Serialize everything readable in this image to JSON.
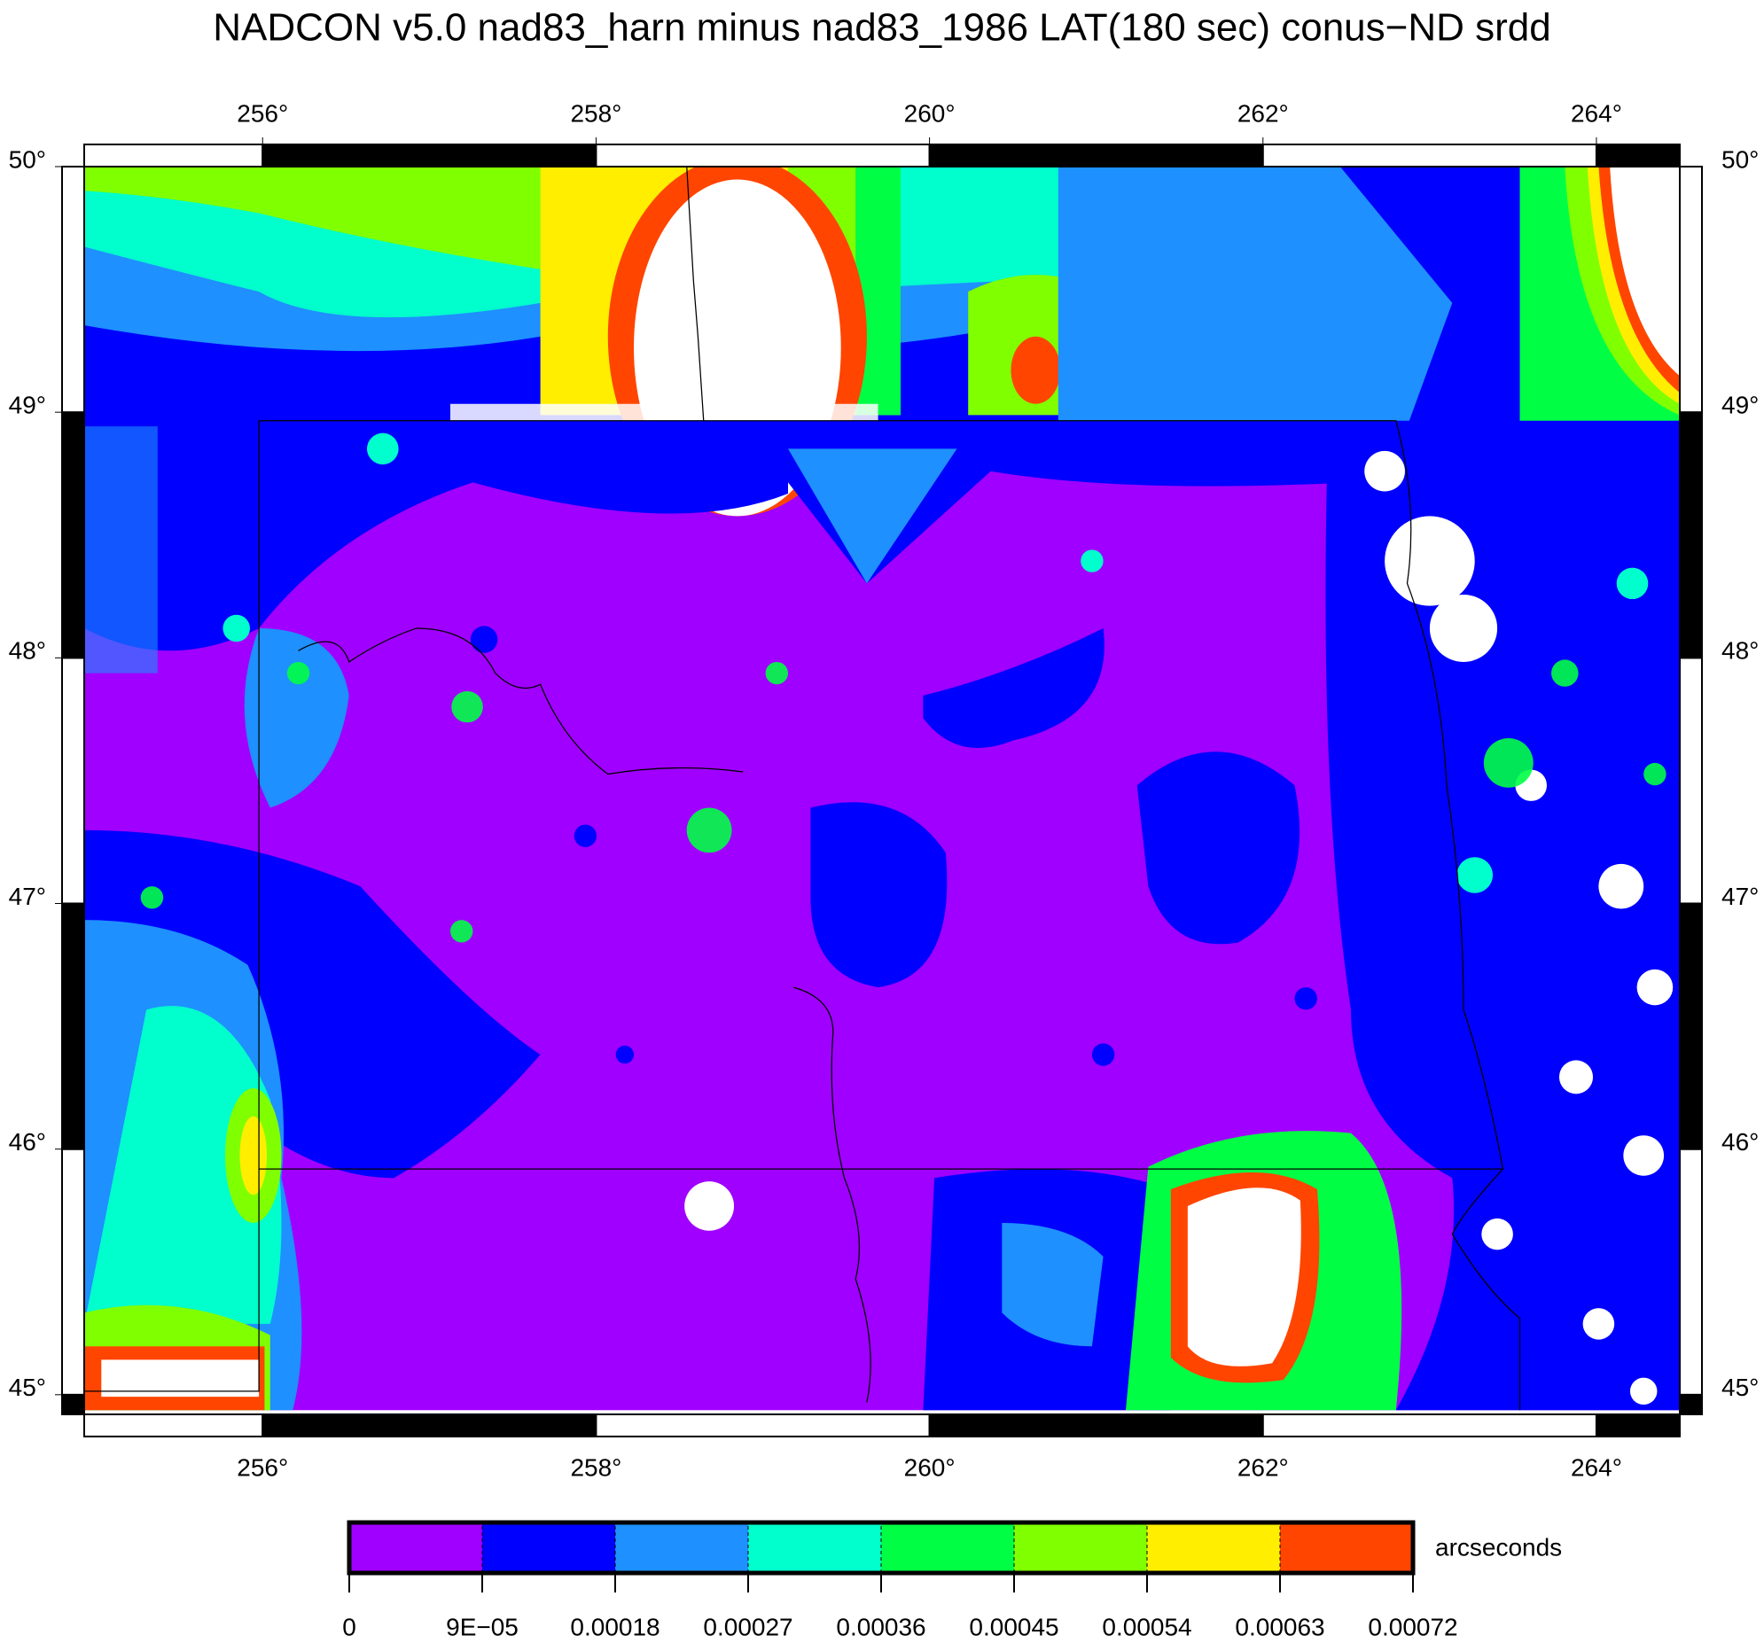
{
  "title": "NADCON v5.0 nad83_harn minus nad83_1986 LAT(180 sec) conus−ND srdd",
  "map": {
    "xlim": [
      254.93,
      264.5
    ],
    "ylim": [
      44.92,
      50
    ],
    "xticks": [
      {
        "value": 256,
        "label": "256°"
      },
      {
        "value": 258,
        "label": "258°"
      },
      {
        "value": 260,
        "label": "260°"
      },
      {
        "value": 262,
        "label": "262°"
      },
      {
        "value": 264,
        "label": "264°"
      }
    ],
    "yticks": [
      {
        "value": 45,
        "label": "45°"
      },
      {
        "value": 46,
        "label": "46°"
      },
      {
        "value": 47,
        "label": "47°"
      },
      {
        "value": 48,
        "label": "48°"
      },
      {
        "value": 49,
        "label": "49°"
      },
      {
        "value": 50,
        "label": "50°"
      }
    ]
  },
  "colorbar": {
    "label": "arcseconds",
    "lim": [
      0,
      0.00072
    ],
    "ticks": [
      0,
      {
        "value": 9e-05,
        "label": "9E−05"
      },
      0.00018,
      0.00027,
      0.00036,
      0.00045,
      0.00054,
      0.00063,
      0.00072
    ],
    "colors": [
      "#a000ff",
      "#0000ff",
      "#1e90ff",
      "#00ffcc",
      "#00ff44",
      "#80ff00",
      "#ffee00",
      "#ff4500"
    ]
  }
}
